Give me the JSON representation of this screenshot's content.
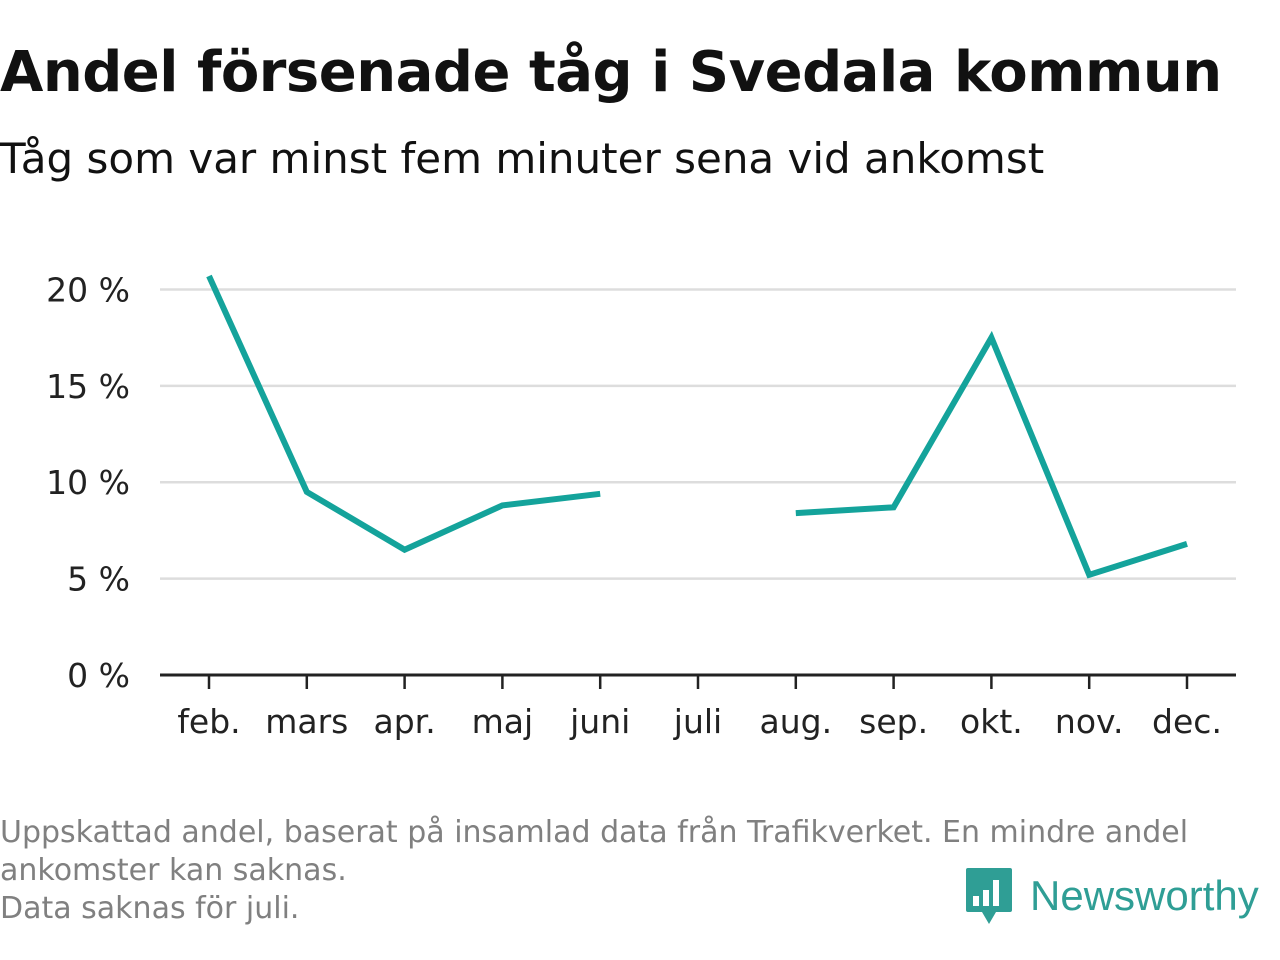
{
  "header": {
    "title": "Andel försenade tåg i Svedala kommun",
    "subtitle": "Tåg som var minst fem minuter sena vid ankomst"
  },
  "footnote": {
    "lines": [
      "Uppskattad andel, baserat på insamlad data från Trafikverket. En mindre andel",
      "ankomster kan saknas.",
      "Data saknas för juli."
    ]
  },
  "logo": {
    "text": "Newsworthy",
    "icon": "bar-chart-speech-bubble-icon",
    "color": "#2f9e95"
  },
  "chart_data": {
    "type": "line",
    "categories": [
      "feb.",
      "mars",
      "apr.",
      "maj",
      "juni",
      "juli",
      "aug.",
      "sep.",
      "okt.",
      "nov.",
      "dec."
    ],
    "series": [
      {
        "color": "#14a39b",
        "values": [
          20.7,
          9.5,
          6.5,
          8.8,
          9.4,
          null,
          8.4,
          8.7,
          17.5,
          5.2,
          6.8
        ]
      }
    ],
    "yticks": [
      0,
      5,
      10,
      15,
      20
    ],
    "ytick_labels": [
      "0 %",
      "5 %",
      "10 %",
      "15 %",
      "20 %"
    ],
    "ylim": [
      0,
      20.7
    ],
    "grid": true,
    "gridColor": "#dddddd",
    "axisColor": "#222222"
  }
}
